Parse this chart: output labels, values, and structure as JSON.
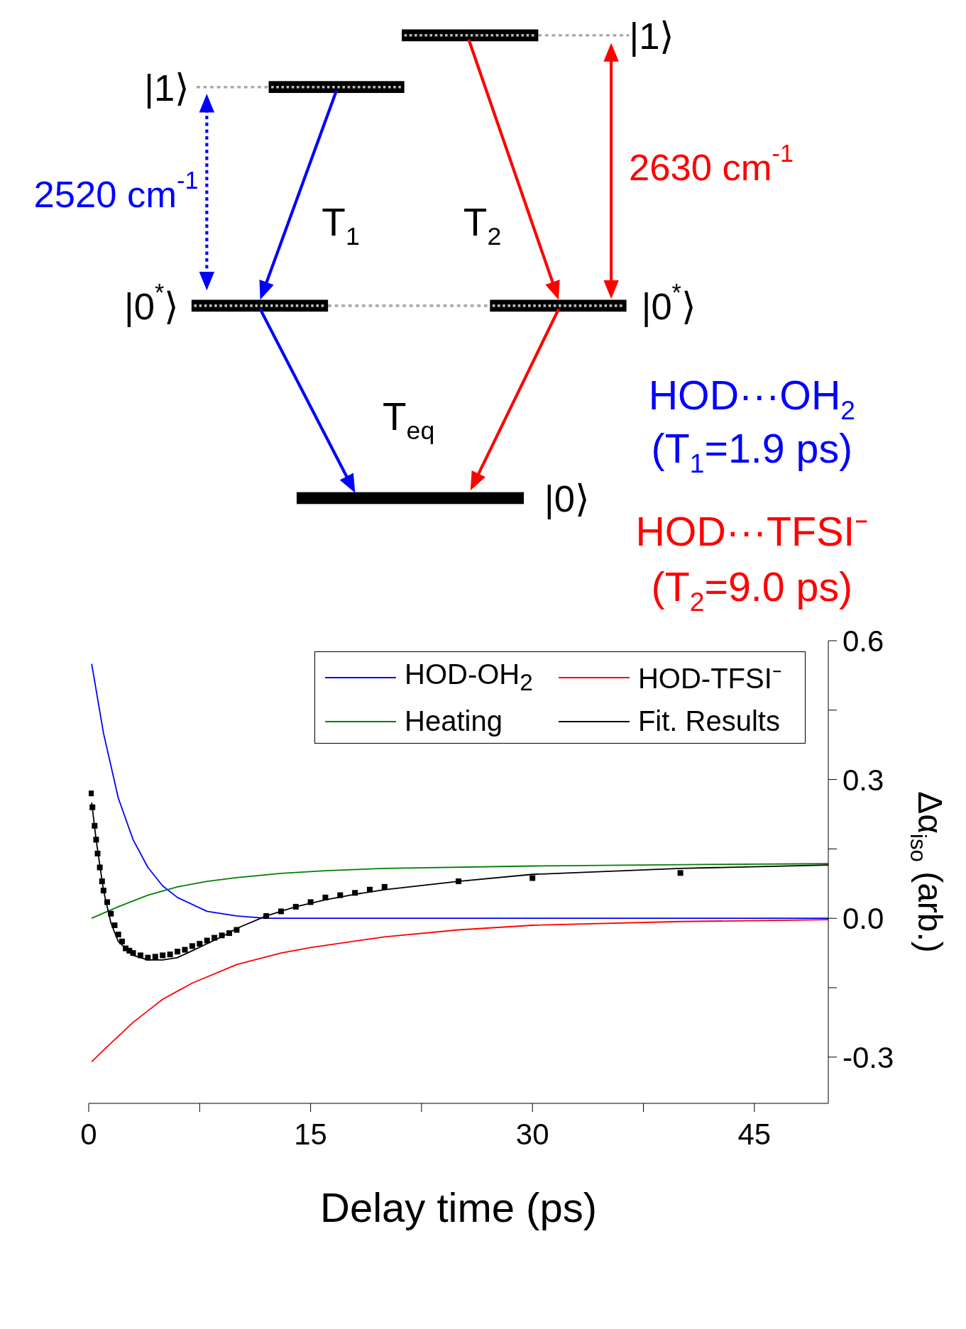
{
  "chart_data": {
    "type": "line",
    "annotations": [
      "|1⟩",
      "|1⟩",
      "|0$^{*}$⟩",
      "|0$^{*}$⟩",
      "|0⟩",
      "2520 cm$^{-1}$",
      "2630 cm$^{-1}$",
      "T$_{1}$",
      "T$_{2}$",
      "T$_{eq}$",
      "HOD···OH$_{2}$",
      "(T$_{1}$=1.9 ps)",
      "HOD···TFSI⁻",
      "(T$_{2}$=9.0 ps)"
    ],
    "xlabel": "Delay time (ps)",
    "ylabel": "Δα$_{iso}$ (arb.)",
    "xlim": [
      0,
      50
    ],
    "xticks": [
      0,
      {
        "value": 7.5,
        "label": null
      },
      15,
      {
        "value": 22.5,
        "label": null
      },
      30,
      {
        "value": 37.5,
        "label": null
      },
      45
    ],
    "ylim": [
      -0.4,
      0.6
    ],
    "yticks": [
      {
        "value": -0.3,
        "label": "-0.3"
      },
      {
        "value": -0.15,
        "label": null
      },
      {
        "value": 0,
        "label": "0.0"
      },
      {
        "value": 0.15,
        "label": null
      },
      0.3,
      {
        "value": 0.45,
        "label": null
      },
      0.6
    ],
    "legend": "top right",
    "grid": false,
    "series": [
      {
        "name": "HOD-OH$_{2}$",
        "color": "#0000ff",
        "x": [
          0.2,
          1,
          2,
          3,
          4,
          5,
          6,
          8,
          10,
          12,
          50
        ],
        "values": [
          0.55,
          0.4,
          0.26,
          0.17,
          0.11,
          0.07,
          0.045,
          0.015,
          0.005,
          0,
          0
        ]
      },
      {
        "name": "HOD-TFSI⁻",
        "color": "#ff0000",
        "x": [
          0.2,
          1,
          2,
          3,
          4,
          5,
          7,
          10,
          13,
          15,
          20,
          25,
          30,
          40,
          50
        ],
        "values": [
          -0.31,
          -0.285,
          -0.255,
          -0.225,
          -0.2,
          -0.175,
          -0.14,
          -0.1,
          -0.075,
          -0.063,
          -0.04,
          -0.025,
          -0.015,
          -0.007,
          -0.003
        ]
      },
      {
        "name": "Heating",
        "color": "#008000",
        "x": [
          0.2,
          2,
          4,
          6,
          8,
          10,
          13,
          16,
          20,
          30,
          40,
          50
        ],
        "values": [
          0,
          0.025,
          0.05,
          0.068,
          0.08,
          0.088,
          0.097,
          0.103,
          0.108,
          0.113,
          0.116,
          0.118
        ]
      },
      {
        "name": "Fit. Results",
        "color": "#000000",
        "x": [
          0.2,
          0.5,
          1,
          1.5,
          2,
          3,
          4,
          5,
          6,
          7,
          8,
          9,
          10,
          12,
          14,
          16,
          18,
          20,
          25,
          30,
          40,
          50
        ],
        "values": [
          0.25,
          0.17,
          0.06,
          -0.01,
          -0.05,
          -0.08,
          -0.09,
          -0.09,
          -0.085,
          -0.07,
          -0.055,
          -0.04,
          -0.022,
          0.005,
          0.025,
          0.04,
          0.052,
          0.062,
          0.08,
          0.095,
          0.108,
          0.115
        ]
      },
      {
        "type": "scatter",
        "color": "#000000",
        "marker": "square",
        "x": [
          0.15,
          0.25,
          0.4,
          0.5,
          0.6,
          0.75,
          0.9,
          1.0,
          1.25,
          1.5,
          1.75,
          2.0,
          2.25,
          2.5,
          2.75,
          3,
          3.5,
          4,
          4.5,
          5,
          5.5,
          6,
          6.5,
          7,
          7.5,
          8,
          8.5,
          9,
          9.5,
          10,
          12,
          13,
          14,
          15,
          16,
          17,
          18,
          19,
          20,
          25,
          30,
          40
        ],
        "values": [
          0.27,
          0.24,
          0.2,
          0.17,
          0.14,
          0.11,
          0.08,
          0.06,
          0.035,
          0.01,
          -0.015,
          -0.035,
          -0.05,
          -0.065,
          -0.07,
          -0.075,
          -0.08,
          -0.085,
          -0.083,
          -0.08,
          -0.078,
          -0.072,
          -0.068,
          -0.06,
          -0.055,
          -0.048,
          -0.042,
          -0.037,
          -0.032,
          -0.025,
          0.005,
          0.015,
          0.025,
          0.035,
          0.045,
          0.05,
          0.055,
          0.062,
          0.068,
          0.08,
          0.087,
          0.098
        ]
      }
    ]
  }
}
